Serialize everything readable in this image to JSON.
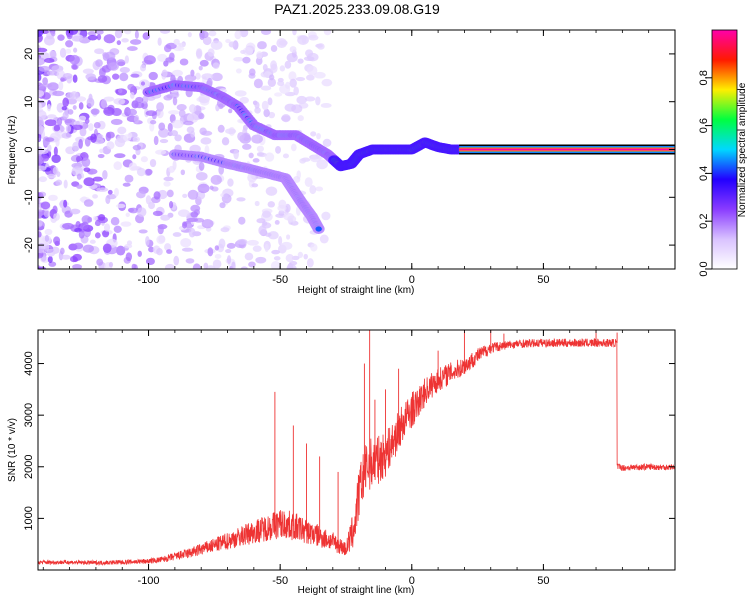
{
  "chart_data": [
    {
      "type": "heatmap",
      "title": "PAZ1.2025.233.09.08.G19",
      "xlabel": "Height of straight line (km)",
      "ylabel": "Frequency (Hz)",
      "xlim": [
        -142,
        100
      ],
      "ylim": [
        -25,
        25
      ],
      "xticks": [
        -100,
        -50,
        0,
        50
      ],
      "xtick_labels": [
        "-100",
        "-50",
        "0",
        "50"
      ],
      "yticks": [
        -20,
        -10,
        0,
        10,
        20
      ],
      "ytick_labels": [
        "-20",
        "-10",
        "0",
        "10",
        "20"
      ],
      "ridges": [
        {
          "name": "main",
          "points": [
            [
              -100,
              12
            ],
            [
              -90,
              13.5
            ],
            [
              -80,
              13
            ],
            [
              -72,
              11
            ],
            [
              -66,
              9
            ],
            [
              -60,
              5
            ],
            [
              -52,
              3
            ],
            [
              -44,
              3
            ],
            [
              -38,
              1
            ],
            [
              -32,
              -1
            ],
            [
              -27,
              -3.5
            ],
            [
              -23,
              -3
            ],
            [
              -20,
              -1
            ],
            [
              -15,
              0
            ],
            [
              -10,
              0
            ],
            [
              -5,
              0
            ],
            [
              0,
              0
            ],
            [
              5,
              1.5
            ],
            [
              10,
              0.5
            ],
            [
              15,
              0
            ],
            [
              20,
              0
            ]
          ]
        },
        {
          "name": "secondary",
          "points": [
            [
              -90,
              -1
            ],
            [
              -80,
              -1.5
            ],
            [
              -70,
              -3
            ],
            [
              -62,
              -4
            ],
            [
              -55,
              -5
            ],
            [
              -48,
              -6
            ],
            [
              -45,
              -8.5
            ],
            [
              -42,
              -11
            ],
            [
              -38,
              -14
            ],
            [
              -35,
              -17
            ]
          ]
        }
      ],
      "carrier": {
        "x_from": 18,
        "x_to": 100,
        "frequency": 0,
        "amplitude": 1.0
      },
      "colorbar": {
        "label": "Normalized spectral amplitude",
        "range": [
          0,
          1
        ],
        "ticks": [
          0.0,
          0.2,
          0.4,
          0.6,
          0.8
        ],
        "tick_labels": [
          "0.0",
          "0.2",
          "0.4",
          "0.6",
          "0.8"
        ],
        "colors": [
          "#ffffff",
          "#d9c2ff",
          "#8a3cff",
          "#2200ff",
          "#00d8ff",
          "#00ff40",
          "#ffee00",
          "#ff1a00",
          "#ff00aa"
        ]
      }
    },
    {
      "type": "line",
      "title": "",
      "xlabel": "Height of straight line (km)",
      "ylabel": "SNR (10 * v/v)",
      "xlim": [
        -142,
        100
      ],
      "ylim": [
        0,
        4650
      ],
      "xticks": [
        -100,
        -50,
        0,
        50
      ],
      "xtick_labels": [
        "-100",
        "-50",
        "0",
        "50"
      ],
      "yticks": [
        1000,
        2000,
        3000,
        4000
      ],
      "ytick_labels": [
        "1000",
        "2000",
        "3000",
        "4000"
      ],
      "series": [
        {
          "name": "SNR",
          "color": "#ee3333",
          "x": [
            -142,
            -130,
            -120,
            -110,
            -100,
            -95,
            -90,
            -85,
            -80,
            -75,
            -70,
            -65,
            -60,
            -55,
            -50,
            -45,
            -40,
            -35,
            -30,
            -25,
            -22,
            -20,
            -18,
            -16,
            -14,
            -12,
            -10,
            -8,
            -6,
            -4,
            -2,
            0,
            2,
            5,
            8,
            12,
            16,
            20,
            25,
            30,
            35,
            40,
            50,
            60,
            70,
            78,
            79,
            80,
            85,
            90,
            95,
            100
          ],
          "values": [
            150,
            150,
            140,
            150,
            170,
            200,
            260,
            320,
            400,
            480,
            560,
            650,
            740,
            820,
            900,
            850,
            750,
            650,
            550,
            400,
            800,
            1500,
            1900,
            2050,
            2100,
            2150,
            2250,
            2400,
            2600,
            2800,
            2950,
            3100,
            3200,
            3450,
            3600,
            3750,
            3850,
            3950,
            4150,
            4300,
            4350,
            4380,
            4400,
            4400,
            4400,
            4400,
            2000,
            1980,
            1990,
            2000,
            1990,
            2000
          ],
          "noise": [
            40,
            40,
            40,
            45,
            50,
            60,
            80,
            100,
            120,
            140,
            170,
            200,
            230,
            260,
            300,
            280,
            250,
            220,
            180,
            150,
            400,
            500,
            500,
            500,
            500,
            450,
            450,
            400,
            400,
            380,
            360,
            350,
            300,
            280,
            250,
            220,
            200,
            180,
            150,
            110,
            90,
            80,
            80,
            80,
            80,
            80,
            60,
            60,
            60,
            60,
            60,
            60
          ],
          "spikes": [
            [
              -52,
              3450
            ],
            [
              -45,
              2800
            ],
            [
              -40,
              2450
            ],
            [
              -35,
              2200
            ],
            [
              -28,
              1900
            ],
            [
              -18,
              4000
            ],
            [
              -16,
              4650
            ],
            [
              -14,
              3300
            ],
            [
              -10,
              3500
            ],
            [
              -5,
              3900
            ],
            [
              10,
              4250
            ],
            [
              20,
              4650
            ],
            [
              30,
              4650
            ],
            [
              35,
              4580
            ],
            [
              70,
              4650
            ],
            [
              78,
              4600
            ]
          ]
        }
      ]
    }
  ]
}
